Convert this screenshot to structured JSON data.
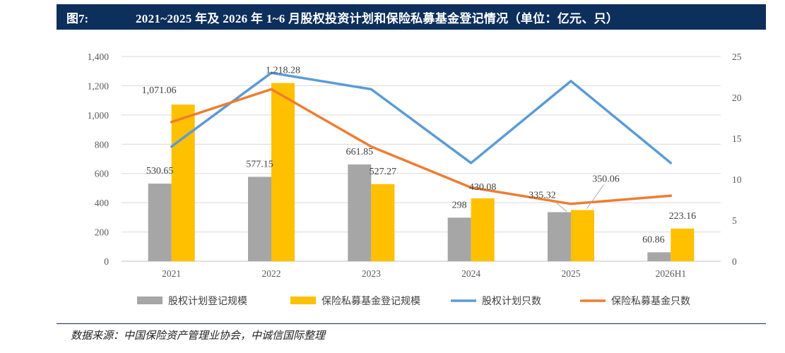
{
  "header": {
    "figure_label": "图7:",
    "title": "2021~2025 年及 2026 年 1~6 月股权投资计划和保险私募基金登记情况（单位：亿元、只）"
  },
  "source": "数据来源：中国保险资产管理业协会，中诚信国际整理",
  "chart_data": {
    "type": "bar",
    "categories": [
      "2021",
      "2022",
      "2023",
      "2024",
      "2025",
      "2026H1"
    ],
    "y_left": {
      "ylim": [
        0,
        1400
      ],
      "ticks": [
        0,
        200,
        400,
        600,
        800,
        1000,
        1200,
        1400
      ],
      "tick_labels": [
        "0",
        "200",
        "400",
        "600",
        "800",
        "1,000",
        "1,200",
        "1,400"
      ]
    },
    "y_right": {
      "ylim": [
        0,
        25
      ],
      "ticks": [
        0,
        5,
        10,
        15,
        20,
        25
      ],
      "tick_labels": [
        "0",
        "5",
        "10",
        "15",
        "20",
        "25"
      ]
    },
    "grid": true,
    "legend_position": "bottom",
    "series": [
      {
        "name": "股权计划登记规模",
        "type": "bar",
        "axis": "left",
        "color": "#a6a6a6",
        "values": [
          530.65,
          577.15,
          661.85,
          298,
          335.32,
          60.86
        ],
        "labels": [
          "530.65",
          "577.15",
          "661.85",
          "298",
          "335.32",
          "60.86"
        ]
      },
      {
        "name": "保险私募基金登记规模",
        "type": "bar",
        "axis": "left",
        "color": "#ffc000",
        "values": [
          1071.06,
          1218.28,
          527.27,
          430.08,
          350.06,
          223.16
        ],
        "labels": [
          "1,071.06",
          "1,218.28",
          "527.27",
          "430.08",
          "350.06",
          "223.16"
        ]
      },
      {
        "name": "股权计划只数",
        "type": "line",
        "axis": "right",
        "color": "#5b9bd5",
        "values": [
          14,
          23,
          21,
          12,
          22,
          12
        ]
      },
      {
        "name": "保险私募基金只数",
        "type": "line",
        "axis": "right",
        "color": "#ed7d31",
        "values": [
          17,
          21,
          14,
          9,
          7,
          8
        ]
      }
    ]
  }
}
